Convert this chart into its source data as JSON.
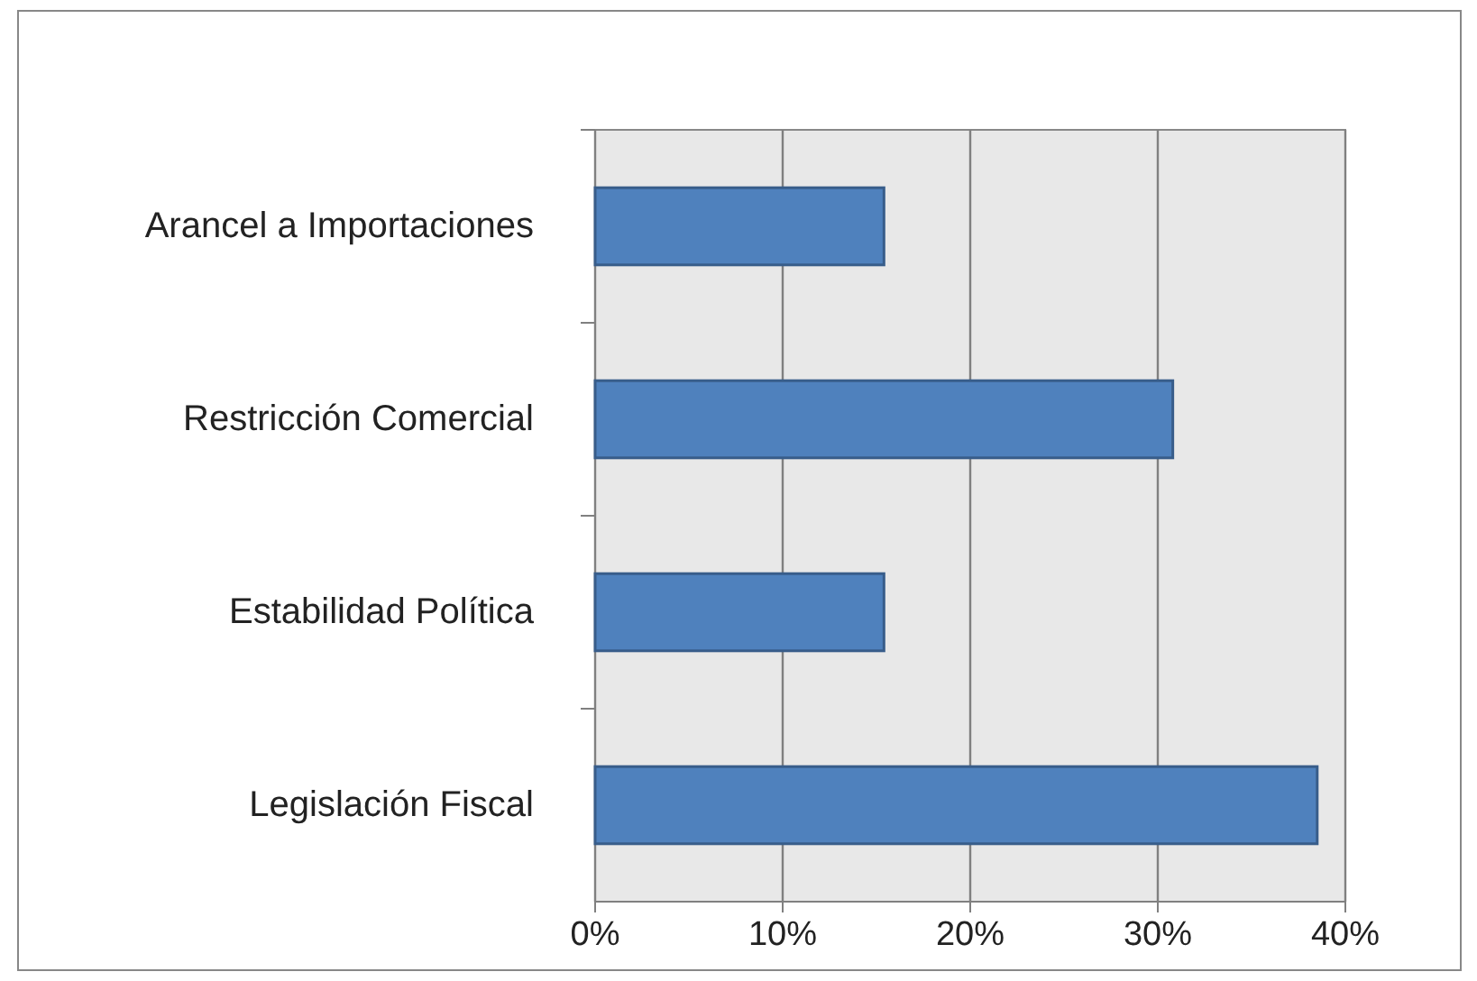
{
  "chart_data": {
    "type": "bar",
    "orientation": "horizontal",
    "categories": [
      "Arancel a Importaciones",
      "Restricción Comercial",
      "Estabilidad Política",
      "Legislación Fiscal"
    ],
    "values": [
      15.4,
      30.8,
      15.4,
      38.5
    ],
    "color": "#4f81bd",
    "xlim": [
      0,
      40
    ],
    "xticks": [
      {
        "value": 0,
        "label": "0%"
      },
      {
        "value": 10,
        "label": "10%"
      },
      {
        "value": 20,
        "label": "20%"
      },
      {
        "value": 30,
        "label": "30%"
      },
      {
        "value": 40,
        "label": "40%"
      }
    ],
    "grid": "x"
  }
}
